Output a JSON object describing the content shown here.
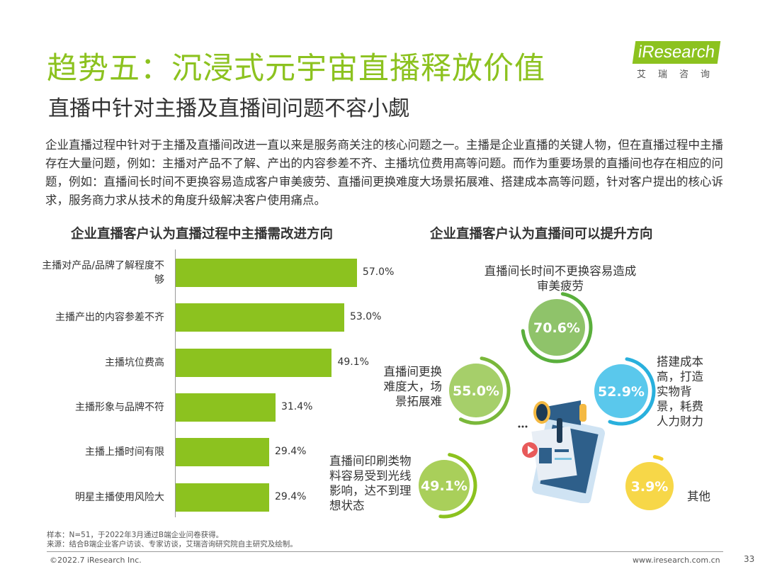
{
  "header": {
    "title": "趋势五：沉浸式元宇宙直播释放价值",
    "subtitle": "直播中针对主播及直播间问题不容小觑",
    "logo_text": "iResearch",
    "logo_cn": "艾瑞咨询"
  },
  "paragraph": "企业直播过程中针对于主播及直播间改进一直以来是服务商关注的核心问题之一。主播是企业直播的关键人物，但在直播过程中主播存在大量问题，例如：主播对产品不了解、产出的内容参差不齐、主播坑位费用高等问题。而作为重要场景的直播间也存在相应的问题，例如：直播间长时间不更换容易造成客户审美疲劳、直播间更换难度大场景拓展难、搭建成本高等问题，针对客户提出的核心诉求，服务商力求从技术的角度升级解决客户使用痛点。",
  "chart_data": [
    {
      "type": "bar",
      "orientation": "horizontal",
      "title": "企业直播客户认为直播过程中主播需改进方向",
      "categories": [
        "主播对产品/品牌了解程度不够",
        "主播产出的内容参差不齐",
        "主播坑位费高",
        "主播形象与品牌不符",
        "主播上播时间有限",
        "明星主播使用风险大"
      ],
      "values": [
        57.0,
        53.0,
        49.1,
        31.4,
        29.4,
        29.4
      ],
      "labels": [
        "57.0%",
        "53.0%",
        "49.1%",
        "31.4%",
        "29.4%",
        "29.4%"
      ],
      "color": "#8cc21f"
    },
    {
      "type": "bubble",
      "title": "企业直播客户认为直播间可以提升方向",
      "items": [
        {
          "label": "直播间长时间不更换容易造成审美疲劳",
          "value": 70.6,
          "text": "70.6%",
          "fill": "#8fc36a",
          "ring": "#5aaf3c"
        },
        {
          "label": "直播间更换难度大，场景拓展难",
          "value": 55.0,
          "text": "55.0%",
          "fill": "#a6cf6a",
          "ring": "#7ab83a"
        },
        {
          "label": "搭建成本高，打造实物背景，耗费人力财力",
          "value": 52.9,
          "text": "52.9%",
          "fill": "#5ac8ec",
          "ring": "#29b0dd"
        },
        {
          "label": "直播间印刷类物料容易受到光线影响，达不到理想状态",
          "value": 49.1,
          "text": "49.1%",
          "fill": "#a9cf5a",
          "ring": "#8cc21f"
        },
        {
          "label": "其他",
          "value": 3.9,
          "text": "3.9%",
          "fill": "#f7d748",
          "ring": "#f3cd2a"
        }
      ]
    }
  ],
  "footer": {
    "sample": "样本：N=51，于2022年3月通过B端企业问卷获得。",
    "source": "来源：结合B端企业客户访谈、专家访谈，艾瑞咨询研究院自主研究及绘制。",
    "company": "©2022.7 iResearch Inc.",
    "website": "www.iresearch.com.cn",
    "page": "33"
  }
}
